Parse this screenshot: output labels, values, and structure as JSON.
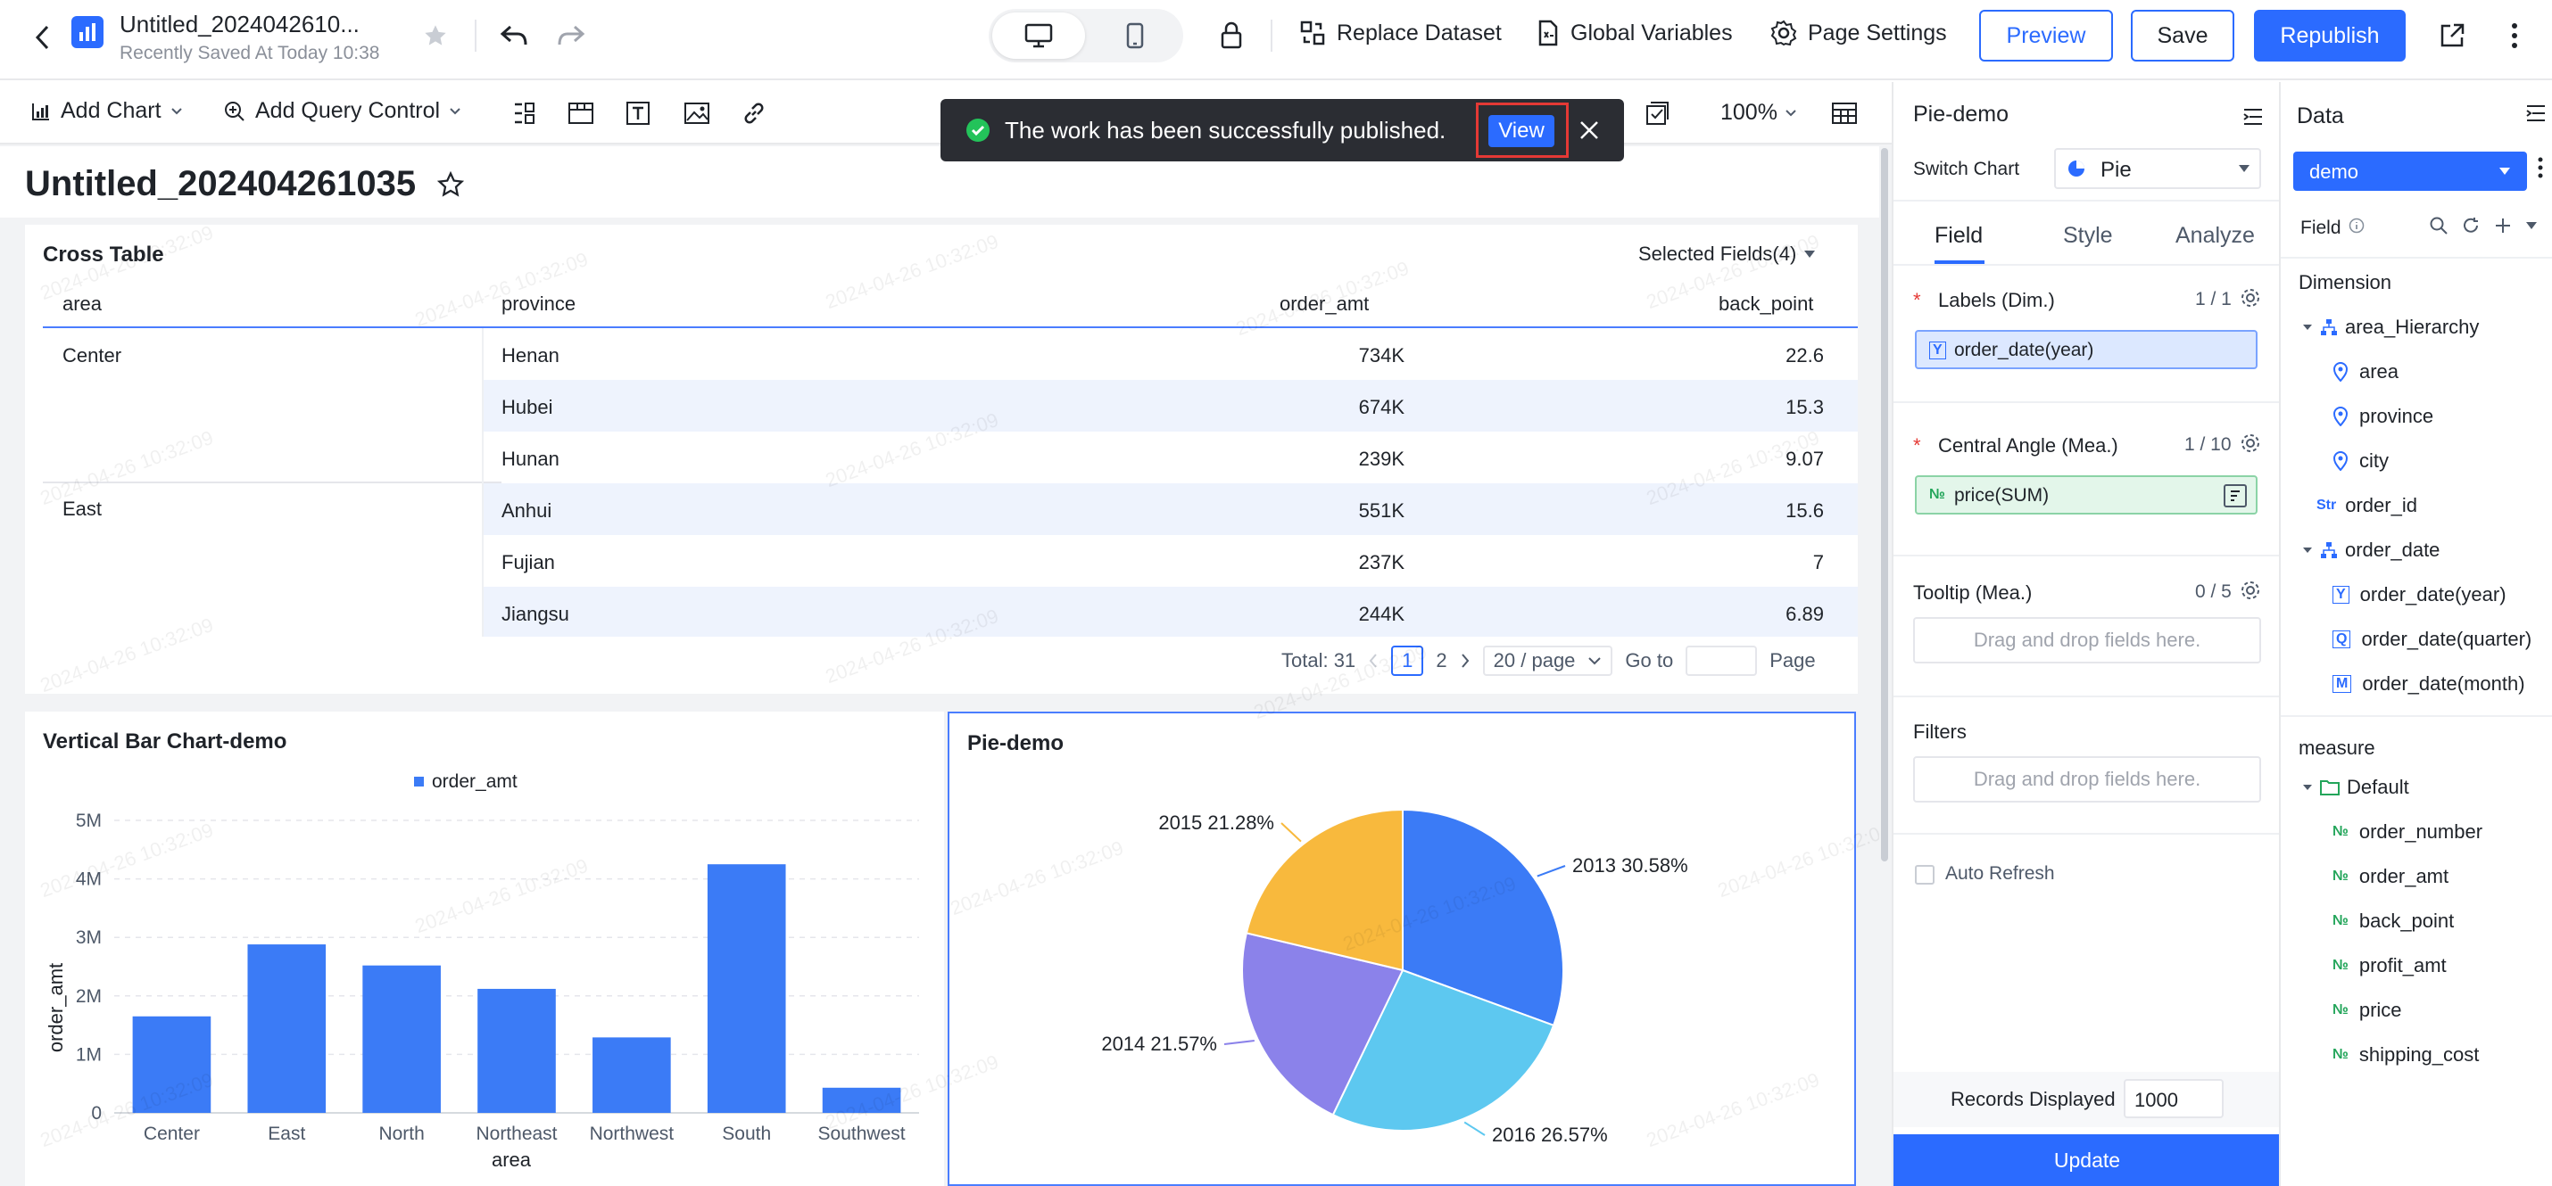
{
  "header": {
    "doc_title": "Untitled_2024042610...",
    "saved_status": "Recently Saved At Today 10:38",
    "replace_dataset": "Replace Dataset",
    "global_variables": "Global Variables",
    "page_settings": "Page Settings",
    "preview": "Preview",
    "save": "Save",
    "republish": "Republish"
  },
  "toolbar": {
    "add_chart": "Add Chart",
    "add_query_control": "Add Query Control",
    "zoom": "100%"
  },
  "toast": {
    "message": "The work has been successfully published.",
    "view": "View"
  },
  "page": {
    "title": "Untitled_202404261035",
    "watermark": "2024-04-26 10:32:09"
  },
  "cross_table": {
    "title": "Cross Table",
    "selected_fields": "Selected Fields(4)",
    "columns": [
      "area",
      "province",
      "order_amt",
      "back_point"
    ],
    "rows": [
      {
        "area": "Center",
        "province": "Henan",
        "order_amt": "734K",
        "back_point": "22.6"
      },
      {
        "area": "",
        "province": "Hubei",
        "order_amt": "674K",
        "back_point": "15.3"
      },
      {
        "area": "",
        "province": "Hunan",
        "order_amt": "239K",
        "back_point": "9.07"
      },
      {
        "area": "East",
        "province": "Anhui",
        "order_amt": "551K",
        "back_point": "15.6"
      },
      {
        "area": "",
        "province": "Fujian",
        "order_amt": "237K",
        "back_point": "7"
      },
      {
        "area": "",
        "province": "Jiangsu",
        "order_amt": "244K",
        "back_point": "6.89"
      }
    ],
    "pager": {
      "total": "Total: 31",
      "page1": "1",
      "page2": "2",
      "page_size": "20 / page",
      "goto": "Go to",
      "page_label": "Page"
    }
  },
  "chart_data": [
    {
      "type": "bar",
      "title": "Vertical Bar Chart-demo",
      "categories": [
        "Center",
        "East",
        "North",
        "Northeast",
        "Northwest",
        "South",
        "Southwest"
      ],
      "series": [
        {
          "name": "order_amt",
          "values": [
            1650000,
            2880000,
            2520000,
            2120000,
            1290000,
            4250000,
            430000
          ]
        }
      ],
      "xlabel": "area",
      "ylabel": "order_amt",
      "yticks": [
        "0",
        "1M",
        "2M",
        "3M",
        "4M",
        "5M"
      ],
      "ylim": [
        0,
        5000000
      ],
      "color": "#3b7bf6",
      "legend": "top-center"
    },
    {
      "type": "pie",
      "title": "Pie-demo",
      "slices": [
        {
          "label": "2013 30.58%",
          "value": 30.58,
          "color": "#3b7bf6"
        },
        {
          "label": "2016 26.57%",
          "value": 26.57,
          "color": "#5dc8f0"
        },
        {
          "label": "2014 21.57%",
          "value": 21.57,
          "color": "#8b82ea"
        },
        {
          "label": "2015 21.28%",
          "value": 21.28,
          "color": "#f8b93d"
        }
      ]
    }
  ],
  "config_panel": {
    "title": "Pie-demo",
    "switch_chart": "Switch Chart",
    "chart_type": "Pie",
    "tabs": [
      "Field",
      "Style",
      "Analyze"
    ],
    "labels_dim": "Labels (Dim.)",
    "labels_count": "1 / 1",
    "labels_field": "order_date(year)",
    "angle_mea": "Central Angle (Mea.)",
    "angle_count": "1 / 10",
    "angle_field": "price(SUM)",
    "tooltip_mea": "Tooltip (Mea.)",
    "tooltip_count": "0 / 5",
    "dropzone": "Drag and drop fields here.",
    "filters": "Filters",
    "auto_refresh": "Auto Refresh",
    "records_displayed": "Records Displayed",
    "records_value": "1000",
    "update": "Update"
  },
  "data_panel": {
    "title": "Data",
    "dataset": "demo",
    "field_label": "Field",
    "dimension": "Dimension",
    "area_hierarchy": "area_Hierarchy",
    "area": "area",
    "province": "province",
    "city": "city",
    "order_id": "order_id",
    "order_date": "order_date",
    "order_date_year": "order_date(year)",
    "order_date_quarter": "order_date(quarter)",
    "order_date_month": "order_date(month)",
    "measure": "measure",
    "default": "Default",
    "measures": [
      "order_number",
      "order_amt",
      "back_point",
      "profit_amt",
      "price",
      "shipping_cost"
    ]
  }
}
